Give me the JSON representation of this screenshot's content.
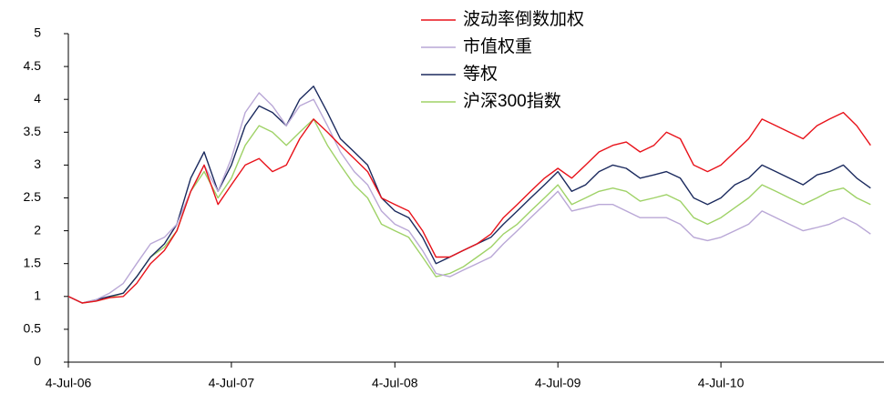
{
  "chart_data": {
    "type": "line",
    "x": [
      "2006-07-04",
      "2006-08-04",
      "2006-09-04",
      "2006-10-04",
      "2006-11-04",
      "2006-12-04",
      "2007-01-04",
      "2007-02-04",
      "2007-03-04",
      "2007-04-04",
      "2007-05-04",
      "2007-06-04",
      "2007-07-04",
      "2007-08-04",
      "2007-09-04",
      "2007-10-04",
      "2007-11-04",
      "2007-12-04",
      "2008-01-04",
      "2008-02-04",
      "2008-03-04",
      "2008-04-04",
      "2008-05-04",
      "2008-06-04",
      "2008-07-04",
      "2008-08-04",
      "2008-09-04",
      "2008-10-04",
      "2008-11-04",
      "2008-12-04",
      "2009-01-04",
      "2009-02-04",
      "2009-03-04",
      "2009-04-04",
      "2009-05-04",
      "2009-06-04",
      "2009-07-04",
      "2009-08-04",
      "2009-09-04",
      "2009-10-04",
      "2009-11-04",
      "2009-12-04",
      "2010-01-04",
      "2010-02-04",
      "2010-03-04",
      "2010-04-04",
      "2010-05-04",
      "2010-06-04",
      "2010-07-04",
      "2010-08-04",
      "2010-09-04",
      "2010-10-04",
      "2010-11-04",
      "2010-12-04",
      "2011-01-04",
      "2011-02-04",
      "2011-03-04",
      "2011-04-04",
      "2011-05-04",
      "2011-06-04"
    ],
    "series": [
      {
        "name": "波动率倒数加权",
        "color": "#e8121a",
        "values": [
          1.0,
          0.9,
          0.93,
          0.98,
          1.0,
          1.2,
          1.5,
          1.7,
          2.0,
          2.6,
          3.0,
          2.4,
          2.7,
          3.0,
          3.1,
          2.9,
          3.0,
          3.4,
          3.7,
          3.5,
          3.3,
          3.1,
          2.9,
          2.5,
          2.4,
          2.3,
          2.0,
          1.6,
          1.6,
          1.7,
          1.8,
          1.95,
          2.2,
          2.4,
          2.6,
          2.8,
          2.95,
          2.8,
          3.0,
          3.2,
          3.3,
          3.35,
          3.2,
          3.3,
          3.5,
          3.4,
          3.0,
          2.9,
          3.0,
          3.2,
          3.4,
          3.7,
          3.6,
          3.5,
          3.4,
          3.6,
          3.7,
          3.8,
          3.6,
          3.3
        ]
      },
      {
        "name": "市值权重",
        "color": "#b9a7d6",
        "values": [
          1.0,
          0.9,
          0.95,
          1.05,
          1.2,
          1.5,
          1.8,
          1.9,
          2.1,
          2.6,
          3.0,
          2.6,
          3.1,
          3.8,
          4.1,
          3.9,
          3.6,
          3.9,
          4.0,
          3.6,
          3.2,
          2.9,
          2.7,
          2.3,
          2.1,
          2.0,
          1.7,
          1.35,
          1.3,
          1.4,
          1.5,
          1.6,
          1.8,
          2.0,
          2.2,
          2.4,
          2.6,
          2.3,
          2.35,
          2.4,
          2.4,
          2.3,
          2.2,
          2.2,
          2.2,
          2.1,
          1.9,
          1.85,
          1.9,
          2.0,
          2.1,
          2.3,
          2.2,
          2.1,
          2.0,
          2.05,
          2.1,
          2.2,
          2.1,
          1.95
        ]
      },
      {
        "name": "等权",
        "color": "#1b2a5e",
        "values": [
          1.0,
          0.9,
          0.95,
          1.0,
          1.05,
          1.3,
          1.6,
          1.8,
          2.1,
          2.8,
          3.2,
          2.6,
          3.0,
          3.6,
          3.9,
          3.8,
          3.6,
          4.0,
          4.2,
          3.8,
          3.4,
          3.2,
          3.0,
          2.5,
          2.3,
          2.2,
          1.9,
          1.5,
          1.6,
          1.7,
          1.8,
          1.9,
          2.1,
          2.3,
          2.5,
          2.7,
          2.9,
          2.6,
          2.7,
          2.9,
          3.0,
          2.95,
          2.8,
          2.85,
          2.9,
          2.8,
          2.5,
          2.4,
          2.5,
          2.7,
          2.8,
          3.0,
          2.9,
          2.8,
          2.7,
          2.85,
          2.9,
          3.0,
          2.8,
          2.65
        ]
      },
      {
        "name": "沪深300指数",
        "color": "#9fd267",
        "values": [
          1.0,
          0.9,
          0.93,
          0.98,
          1.05,
          1.3,
          1.6,
          1.75,
          2.0,
          2.6,
          2.9,
          2.5,
          2.8,
          3.3,
          3.6,
          3.5,
          3.3,
          3.5,
          3.7,
          3.3,
          3.0,
          2.7,
          2.5,
          2.1,
          2.0,
          1.9,
          1.6,
          1.3,
          1.35,
          1.45,
          1.6,
          1.75,
          1.95,
          2.1,
          2.3,
          2.5,
          2.7,
          2.4,
          2.5,
          2.6,
          2.65,
          2.6,
          2.45,
          2.5,
          2.55,
          2.45,
          2.2,
          2.1,
          2.2,
          2.35,
          2.5,
          2.7,
          2.6,
          2.5,
          2.4,
          2.5,
          2.6,
          2.65,
          2.5,
          2.4
        ]
      }
    ],
    "xlim": [
      "2006-07-04",
      "2011-07-04"
    ],
    "xticks": [
      {
        "value": "2006-07-04",
        "label": "4-Jul-06"
      },
      {
        "value": "2007-07-04",
        "label": "4-Jul-07"
      },
      {
        "value": "2008-07-04",
        "label": "4-Jul-08"
      },
      {
        "value": "2009-07-04",
        "label": "4-Jul-09"
      },
      {
        "value": "2010-07-04",
        "label": "4-Jul-10"
      }
    ],
    "ylim": [
      0,
      5
    ],
    "yticks": [
      0,
      0.5,
      1,
      1.5,
      2,
      2.5,
      3,
      3.5,
      4,
      4.5,
      5
    ],
    "grid": false
  }
}
